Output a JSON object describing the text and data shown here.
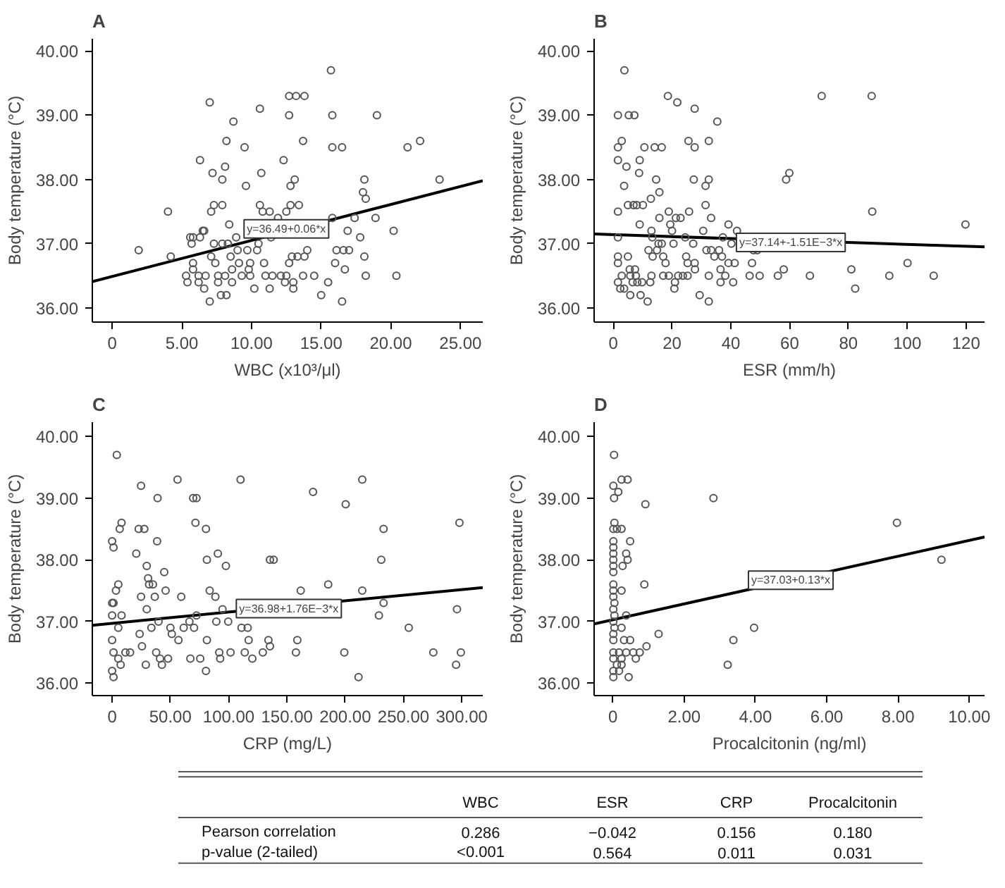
{
  "chart_data": [
    {
      "type": "scatter",
      "title": "A",
      "xlabel": "WBC (x10³/μl)",
      "ylabel": "Body temperature (°C)",
      "marker": "circle",
      "xlim": [
        -1.43,
        26.6
      ],
      "ylim": [
        35.78,
        40.19
      ],
      "xticks": [
        0,
        {
          "value": 5,
          "label": "5.00"
        },
        {
          "value": 10,
          "label": "10.00"
        },
        {
          "value": 15,
          "label": "15.00"
        },
        {
          "value": 20,
          "label": "20.00"
        },
        {
          "value": 25,
          "label": "25.00"
        }
      ],
      "yticks": [
        {
          "value": 36,
          "label": "36.00"
        },
        {
          "value": 37,
          "label": "37.00"
        },
        {
          "value": 38,
          "label": "38.00"
        },
        {
          "value": 39,
          "label": "39.00"
        },
        {
          "value": 40,
          "label": "40.00"
        }
      ],
      "series": [
        {
          "type": "scatter",
          "color": "#555555",
          "x": [
            1.9,
            4.0,
            4.2,
            5.3,
            5.4,
            5.6,
            5.7,
            5.8,
            5.8,
            5.8,
            6.2,
            6.2,
            6.3,
            6.3,
            6.5,
            6.6,
            6.6,
            6.7,
            7.0,
            7.0,
            7.1,
            7.1,
            7.2,
            7.3,
            7.3,
            7.4,
            7.6,
            7.6,
            7.8,
            7.9,
            7.9,
            7.9,
            8.1,
            8.2,
            8.2,
            8.1,
            8.3,
            8.4,
            8.5,
            8.6,
            8.6,
            8.7,
            8.9,
            9.0,
            9.1,
            9.3,
            9.5,
            9.6,
            9.7,
            9.8,
            9.9,
            9.9,
            10.2,
            10.4,
            10.5,
            10.6,
            10.6,
            10.7,
            10.8,
            10.9,
            11.0,
            11.3,
            11.4,
            11.3,
            11.5,
            11.9,
            12.1,
            12.3,
            12.4,
            12.5,
            12.5,
            12.7,
            12.7,
            12.7,
            12.8,
            12.8,
            12.9,
            13.0,
            13.0,
            13.1,
            13.2,
            13.3,
            13.4,
            13.7,
            13.8,
            13.7,
            13.8,
            14.0,
            14.5,
            15.0,
            15.5,
            15.7,
            15.8,
            15.8,
            15.8,
            16.1,
            16.0,
            16.5,
            16.5,
            16.6,
            16.7,
            16.9,
            17.0,
            17.4,
            17.8,
            18.0,
            18.1,
            18.2,
            18.1,
            18.2,
            18.9,
            19.0,
            20.2,
            20.4,
            21.2,
            22.1,
            23.5
          ],
          "values": [
            36.9,
            37.5,
            36.8,
            36.5,
            36.4,
            37.1,
            37.0,
            37.1,
            36.7,
            36.6,
            36.5,
            36.4,
            38.3,
            37.1,
            37.2,
            37.2,
            36.3,
            36.5,
            39.2,
            36.1,
            36.8,
            37.5,
            38.1,
            37.6,
            37.0,
            36.7,
            36.5,
            36.4,
            36.2,
            38.0,
            37.6,
            37.0,
            38.2,
            38.6,
            36.2,
            36.5,
            37.0,
            37.3,
            36.8,
            36.6,
            36.4,
            38.9,
            37.1,
            36.9,
            36.7,
            36.5,
            38.5,
            37.9,
            36.9,
            36.6,
            36.5,
            36.7,
            36.3,
            36.9,
            37.0,
            39.1,
            37.6,
            38.1,
            37.5,
            36.7,
            36.5,
            37.5,
            37.1,
            36.3,
            36.5,
            37.4,
            36.5,
            38.3,
            36.4,
            37.5,
            36.5,
            39.3,
            39.0,
            36.7,
            37.9,
            37.6,
            36.8,
            36.4,
            36.3,
            38.0,
            39.3,
            36.8,
            37.6,
            36.5,
            39.3,
            38.6,
            36.8,
            36.9,
            36.5,
            36.2,
            36.4,
            39.7,
            38.5,
            39.0,
            37.4,
            36.9,
            36.7,
            38.5,
            36.1,
            36.9,
            36.6,
            37.2,
            36.9,
            37.4,
            37.1,
            37.8,
            38.0,
            37.7,
            36.8,
            36.5,
            37.4,
            39.0,
            37.2,
            36.5,
            38.5,
            38.6,
            38.0
          ]
        },
        {
          "type": "line",
          "marker": "none",
          "color": "#000000",
          "x": [
            -1.43,
            26.6
          ],
          "values": [
            36.41,
            37.98
          ]
        }
      ],
      "annotations": [
        {
          "text": "y=36.49+0.06*x",
          "x": 12.5,
          "y": 37.23
        }
      ]
    },
    {
      "type": "scatter",
      "title": "B",
      "xlabel": "ESR (mm/h)",
      "ylabel": "Body temperature (°C)",
      "marker": "circle",
      "xlim": [
        -6.5,
        126.3
      ],
      "ylim": [
        35.78,
        40.19
      ],
      "xticks": [
        0,
        20,
        40,
        60,
        80,
        100,
        120
      ],
      "yticks": [
        {
          "value": 36,
          "label": "36.00"
        },
        {
          "value": 37,
          "label": "37.00"
        },
        {
          "value": 38,
          "label": "38.00"
        },
        {
          "value": 39,
          "label": "39.00"
        },
        {
          "value": 40,
          "label": "40.00"
        }
      ],
      "series": [
        {
          "type": "scatter",
          "color": "#555555",
          "x": [
            3.8,
            1.6,
            5.3,
            7.2,
            1.6,
            2.9,
            1.6,
            4.5,
            3.7,
            5.0,
            6.9,
            8.0,
            10.1,
            1.6,
            1.6,
            1.6,
            1.6,
            1.6,
            2.9,
            2.4,
            3.7,
            5.0,
            5.6,
            5.8,
            6.6,
            5.8,
            7.4,
            7.7,
            8.2,
            9.3,
            9.8,
            9.0,
            8.8,
            9.0,
            10.6,
            11.7,
            12.0,
            12.8,
            13.0,
            13.3,
            13.4,
            13.0,
            12.6,
            14.1,
            14.6,
            14.9,
            15.4,
            15.7,
            15.7,
            16.5,
            16.5,
            17.0,
            17.0,
            17.8,
            18.6,
            18.9,
            18.9,
            19.4,
            20.0,
            20.5,
            21.0,
            20.8,
            21.3,
            21.8,
            22.1,
            22.9,
            23.7,
            24.5,
            24.8,
            25.3,
            25.3,
            25.6,
            25.8,
            27.2,
            27.4,
            27.7,
            27.7,
            27.7,
            27.8,
            29.4,
            30.6,
            31.4,
            31.4,
            31.7,
            32.5,
            32.5,
            32.5,
            32.5,
            33.3,
            33.3,
            34.4,
            35.4,
            36.0,
            36.5,
            36.5,
            37.0,
            37.3,
            38.1,
            39.2,
            39.2,
            40.2,
            40.8,
            41.3,
            42.1,
            46.4,
            47.2,
            47.7,
            49.0,
            49.8,
            56.0,
            58.0,
            58.8,
            59.9,
            66.9,
            70.9,
            81.0,
            82.3,
            87.9,
            88.1,
            93.9,
            100.1,
            109.0,
            119.8
          ],
          "values": [
            39.7,
            39.0,
            39.0,
            39.0,
            38.5,
            38.6,
            38.3,
            38.2,
            37.9,
            37.6,
            37.6,
            37.6,
            37.6,
            37.5,
            37.1,
            36.8,
            36.7,
            36.4,
            36.5,
            36.3,
            36.3,
            36.8,
            36.6,
            36.5,
            36.4,
            36.2,
            36.6,
            36.5,
            36.4,
            36.2,
            36.4,
            38.3,
            38.1,
            37.3,
            38.5,
            36.1,
            36.9,
            37.7,
            37.2,
            37.1,
            36.8,
            36.5,
            36.4,
            38.5,
            38.0,
            36.9,
            37.0,
            37.4,
            37.8,
            38.5,
            37.0,
            36.8,
            36.5,
            36.7,
            39.3,
            37.5,
            36.5,
            37.3,
            37.2,
            37.0,
            36.4,
            36.3,
            37.4,
            39.2,
            36.5,
            37.4,
            36.5,
            37.1,
            36.8,
            36.7,
            36.5,
            38.6,
            37.5,
            37.0,
            38.0,
            38.5,
            39.1,
            36.7,
            36.6,
            36.2,
            37.2,
            37.6,
            37.9,
            36.9,
            38.6,
            38.0,
            36.5,
            36.1,
            37.4,
            36.9,
            36.8,
            38.9,
            36.9,
            36.6,
            36.4,
            36.8,
            37.1,
            36.5,
            37.3,
            36.7,
            37.0,
            36.4,
            36.7,
            37.2,
            36.5,
            36.7,
            36.9,
            36.9,
            36.5,
            36.5,
            36.6,
            38.0,
            38.1,
            36.5,
            39.3,
            36.6,
            36.3,
            39.3,
            37.5,
            36.5,
            36.7,
            36.5,
            37.3
          ]
        },
        {
          "type": "line",
          "marker": "none",
          "color": "#000000",
          "x": [
            -6.5,
            126.3
          ],
          "values": [
            37.15,
            36.95
          ]
        }
      ],
      "annotations": [
        {
          "text": "y=37.14+-1.51E−3*x",
          "x": 60.4,
          "y": 37.02
        }
      ]
    },
    {
      "type": "scatter",
      "title": "C",
      "xlabel": "CRP (mg/L)",
      "ylabel": "Body temperature (°C)",
      "marker": "circle",
      "xlim": [
        -17,
        318
      ],
      "ylim": [
        35.8,
        40.23
      ],
      "xticks": [
        0,
        {
          "value": 50,
          "label": "50.00"
        },
        {
          "value": 100,
          "label": "100.00"
        },
        {
          "value": 150,
          "label": "150.00"
        },
        {
          "value": 200,
          "label": "200.00"
        },
        {
          "value": 250,
          "label": "250.00"
        },
        {
          "value": 300,
          "label": "300.00"
        }
      ],
      "yticks": [
        {
          "value": 36,
          "label": "36.00"
        },
        {
          "value": 37,
          "label": "37.00"
        },
        {
          "value": 38,
          "label": "38.00"
        },
        {
          "value": 39,
          "label": "39.00"
        },
        {
          "value": 40,
          "label": "40.00"
        }
      ],
      "series": [
        {
          "type": "scatter",
          "color": "#555555",
          "x": [
            4,
            0,
            1.2,
            0,
            1.2,
            0,
            0,
            1.2,
            0,
            1.2,
            3.3,
            5.3,
            5.3,
            6.5,
            8.1,
            8.1,
            7.3,
            5.3,
            11.4,
            15.4,
            20.7,
            24.8,
            22.8,
            27.6,
            24.8,
            23.6,
            25.6,
            29.7,
            29.7,
            28.9,
            30.9,
            31.7,
            35,
            36.6,
            33.7,
            37.8,
            39,
            38.6,
            39.8,
            41.1,
            42.7,
            44.7,
            45.9,
            48,
            50,
            51.2,
            56.1,
            56.9,
            59.3,
            61.4,
            66.3,
            67.1,
            69.5,
            72.4,
            71.5,
            72.4,
            70.3,
            75.6,
            80.5,
            81.3,
            80.5,
            81.3,
            83.7,
            88.6,
            90.7,
            89.4,
            91.9,
            92.7,
            94.7,
            97.6,
            99.6,
            101.6,
            110.2,
            111,
            113.8,
            116.3,
            117.1,
            120.3,
            129.3,
            134.1,
            135.4,
            135.4,
            138.6,
            157.7,
            158.9,
            161.8,
            172.4,
            185.4,
            200.4,
            199.2,
            211.4,
            214.6,
            214.6,
            228.9,
            230.9,
            232.9,
            232.9,
            254.5,
            275.6,
            295.1,
            295.9,
            298,
            299.2
          ],
          "values": [
            39.7,
            38.3,
            38.2,
            37.3,
            37.3,
            37.1,
            36.7,
            36.5,
            36.2,
            36.1,
            37.5,
            37.6,
            36.9,
            38.5,
            38.6,
            37.1,
            36.3,
            36.4,
            36.5,
            36.5,
            38.1,
            39.2,
            38.5,
            38.5,
            37.4,
            36.8,
            36.6,
            37.9,
            37.2,
            36.3,
            37.7,
            37.6,
            37.6,
            37.4,
            36.9,
            36.5,
            39.0,
            38.3,
            37.0,
            36.4,
            36.3,
            37.8,
            37.5,
            36.4,
            36.9,
            36.8,
            39.3,
            36.7,
            37.4,
            36.9,
            37.0,
            36.4,
            39.0,
            39.0,
            38.6,
            37.1,
            36.9,
            36.4,
            38.5,
            38.0,
            36.2,
            36.7,
            37.5,
            37.4,
            38.1,
            37.0,
            36.5,
            36.4,
            37.2,
            37.9,
            37.0,
            36.5,
            39.3,
            36.9,
            36.5,
            36.9,
            36.7,
            36.4,
            36.5,
            36.7,
            36.6,
            38.0,
            38.0,
            36.5,
            36.7,
            37.5,
            39.1,
            37.6,
            38.9,
            36.5,
            36.1,
            39.3,
            37.5,
            37.1,
            38.0,
            38.5,
            37.3,
            36.9,
            36.5,
            36.3,
            37.2,
            38.6,
            36.5
          ]
        },
        {
          "type": "line",
          "marker": "none",
          "color": "#000000",
          "x": [
            -17,
            318
          ],
          "values": [
            36.94,
            37.55
          ]
        }
      ],
      "annotations": [
        {
          "text": "y=36.98+1.76E−3*x",
          "x": 151.6,
          "y": 37.21
        }
      ]
    },
    {
      "type": "scatter",
      "title": "D",
      "xlabel": "Procalcitonin (ng/ml)",
      "ylabel": "Body temperature (°C)",
      "marker": "circle",
      "xlim": [
        -0.53,
        10.43
      ],
      "ylim": [
        35.8,
        40.23
      ],
      "xticks": [
        0,
        {
          "value": 2,
          "label": "2.00"
        },
        {
          "value": 4,
          "label": "4.00"
        },
        {
          "value": 6,
          "label": "6.00"
        },
        {
          "value": 8,
          "label": "8.00"
        },
        {
          "value": 10,
          "label": "10.00"
        }
      ],
      "yticks": [
        {
          "value": 36,
          "label": "36.00"
        },
        {
          "value": 37,
          "label": "37.00"
        },
        {
          "value": 38,
          "label": "38.00"
        },
        {
          "value": 39,
          "label": "39.00"
        },
        {
          "value": 40,
          "label": "40.00"
        }
      ],
      "series": [
        {
          "type": "scatter",
          "color": "#555555",
          "x": [
            0.03,
            0.01,
            0.03,
            0.15,
            0.24,
            0.41,
            0.04,
            0.01,
            0.11,
            0.24,
            0.01,
            0.01,
            0.01,
            0.01,
            0.01,
            0.01,
            0.37,
            0.41,
            0.27,
            0.48,
            0.01,
            0.01,
            0.24,
            0.01,
            0.04,
            0.01,
            0.04,
            0.37,
            0.01,
            0.04,
            0.24,
            0.01,
            0.01,
            0.01,
            0.17,
            0.31,
            0.48,
            0.37,
            0.01,
            0.24,
            0.11,
            0.24,
            0.01,
            0.17,
            0.01,
            0.44,
            0.57,
            0.64,
            0.75,
            0.88,
            0.91,
            0.94,
            1.28,
            2.82,
            3.22,
            3.38,
            3.96,
            7.97,
            9.22
          ],
          "values": [
            39.7,
            39.2,
            39.0,
            39.1,
            39.3,
            39.3,
            38.6,
            38.5,
            38.5,
            38.5,
            38.3,
            38.2,
            38.1,
            38.0,
            37.9,
            37.8,
            38.1,
            38.0,
            37.9,
            38.3,
            37.6,
            37.5,
            37.5,
            37.4,
            37.3,
            37.2,
            37.1,
            37.1,
            37.0,
            36.9,
            36.9,
            36.8,
            36.7,
            36.5,
            36.5,
            36.7,
            36.7,
            36.5,
            36.4,
            36.4,
            36.3,
            36.3,
            36.2,
            36.2,
            36.1,
            36.1,
            36.5,
            36.4,
            36.5,
            37.6,
            38.9,
            36.6,
            36.8,
            39.0,
            36.3,
            36.7,
            36.9,
            38.6,
            38.0
          ]
        },
        {
          "type": "line",
          "marker": "none",
          "color": "#000000",
          "x": [
            -0.53,
            10.43
          ],
          "values": [
            36.96,
            38.37
          ]
        }
      ],
      "annotations": [
        {
          "text": "y=37.03+0.13*x",
          "x": 4.99,
          "y": 37.67
        }
      ]
    },
    {
      "type": "other",
      "annotations": [
        "WBC",
        "ESR",
        "CRP",
        "Procalcitonin",
        "Pearson correlation",
        "0.286",
        "−0.042",
        "0.156",
        "0.180",
        "p-value (2-tailed)",
        "<0.001",
        "0.564",
        "0.011",
        "0.031"
      ]
    }
  ]
}
